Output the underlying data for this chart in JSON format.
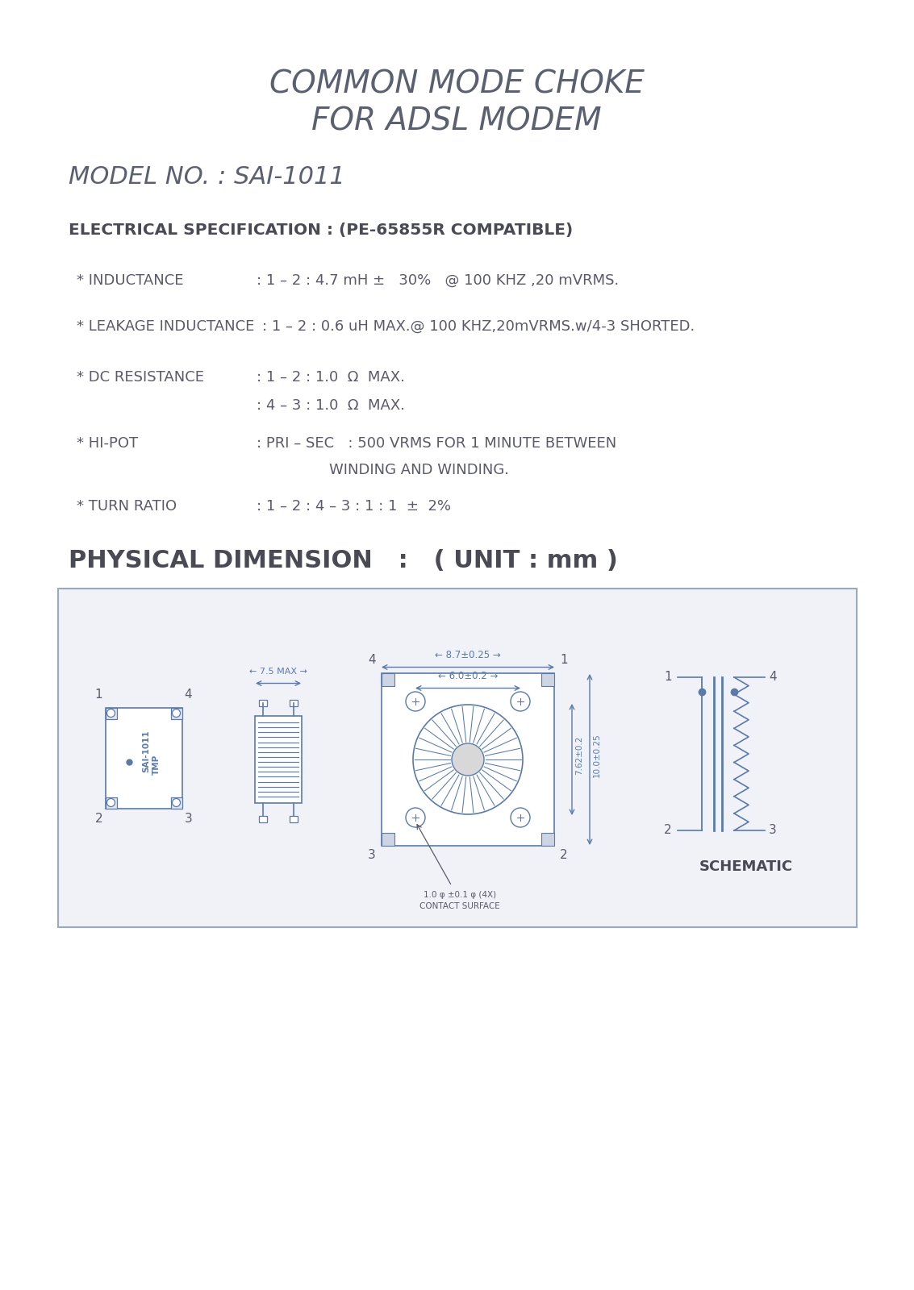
{
  "page_bg": "#ffffff",
  "title_line1": "COMMON MODE CHOKE",
  "title_line2": "FOR ADSL MODEM",
  "model_no": "MODEL NO. : SAI-1011",
  "elec_spec_title": "ELECTRICAL SPECIFICATION : (PE-65855R COMPATIBLE)",
  "spec_color": "#5a5a6a",
  "title_color": "#5a6070",
  "text_color": "#4a4a55",
  "drawing_color": "#5a7aaa",
  "box_bg": "#f0f2f8",
  "box_border": "#9aaabb"
}
